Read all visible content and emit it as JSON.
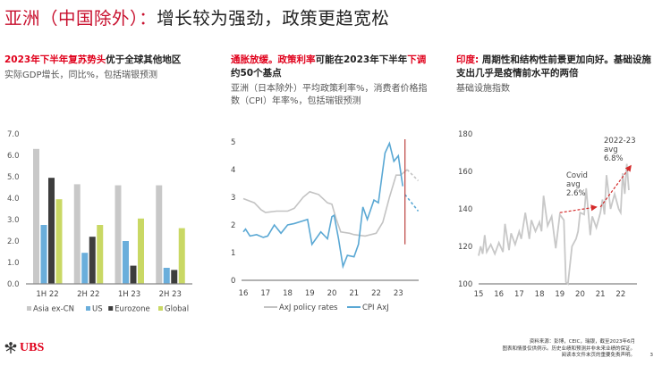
{
  "title": {
    "red": "亚洲（中国除外）：",
    "dark": "增长较为强劲，政策更趋宽松"
  },
  "panels": [
    {
      "headline_red": "2023年下半年复苏势头",
      "headline_dark": "优于全球其他地区",
      "subtitle": "实际GDP增长，同比%，包括瑞银预测"
    },
    {
      "headline_red1": "通胀放缓。政策利率",
      "headline_dark1": "可能在2023年下半年",
      "headline_red2": "下调",
      "headline_dark2": "约50个基点",
      "subtitle": "亚洲（日本除外）平均政策利率%，消费者价格指数（CPI）年率%，包括瑞银预测"
    },
    {
      "headline_red": "印度:",
      "headline_dark": " 周期性和结构性前景更加向好。基础设施支出几乎是疫情前水平的两倍",
      "subtitle": "基础设施指数"
    }
  ],
  "chart_data": [
    {
      "type": "bar",
      "title": "2023年下半年复苏势头优于全球其他地区",
      "ylabel": "实际GDP增长，同比%",
      "categories": [
        "1H 22",
        "2H 22",
        "1H 23",
        "2H 23"
      ],
      "yticks": [
        "0.0",
        "1.0",
        "2.0",
        "3.0",
        "4.0",
        "5.0",
        "6.0",
        "7.0"
      ],
      "ylim": [
        0,
        7
      ],
      "series": [
        {
          "name": "Asia ex-CN",
          "color": "#c8c8c8",
          "values": [
            6.3,
            4.65,
            4.6,
            4.6
          ]
        },
        {
          "name": "US",
          "color": "#6aaedb",
          "values": [
            2.75,
            1.45,
            2.0,
            0.75
          ]
        },
        {
          "name": "Eurozone",
          "color": "#3d3d3d",
          "values": [
            4.95,
            2.2,
            0.85,
            0.65
          ]
        },
        {
          "name": "Global",
          "color": "#c9d864",
          "values": [
            3.95,
            2.75,
            3.05,
            2.6
          ]
        }
      ],
      "legend_position": "bottom"
    },
    {
      "type": "line",
      "title": "亚洲（日本除外）平均政策利率%，CPI年率%",
      "x_ticks": [
        "16",
        "17",
        "18",
        "19",
        "20",
        "21",
        "22",
        "23"
      ],
      "yticks": [
        "0",
        "1",
        "2",
        "3",
        "4",
        "5"
      ],
      "ylim": [
        0,
        5
      ],
      "series": [
        {
          "name": "AxJ policy rates",
          "color": "#c3c3c3",
          "x": [
            16,
            16.5,
            16.8,
            17,
            17.5,
            18,
            18.3,
            18.7,
            19,
            19.4,
            19.8,
            20,
            20.2,
            20.4,
            20.8,
            21,
            21.5,
            22,
            22.3,
            22.6,
            22.9,
            23.1,
            23.4
          ],
          "y": [
            2.95,
            2.8,
            2.55,
            2.45,
            2.5,
            2.5,
            2.6,
            3.0,
            3.2,
            3.1,
            2.8,
            2.75,
            2.2,
            1.75,
            1.7,
            1.65,
            1.6,
            1.7,
            2.1,
            3.0,
            3.8,
            3.8,
            4.0
          ]
        },
        {
          "name": "AxJ policy rates (forecast)",
          "color": "#c3c3c3",
          "dashed": true,
          "x": [
            23.4,
            23.9
          ],
          "y": [
            4.0,
            3.6
          ]
        },
        {
          "name": "CPI AxJ",
          "color": "#5aa8d4",
          "x": [
            16,
            16.1,
            16.3,
            16.6,
            16.9,
            17.1,
            17.4,
            17.7,
            18,
            18.3,
            18.7,
            18.9,
            19.1,
            19.5,
            19.8,
            20,
            20.1,
            20.3,
            20.5,
            20.7,
            21,
            21.2,
            21.4,
            21.6,
            21.9,
            22.1,
            22.4,
            22.6,
            22.8,
            23.0,
            23.2
          ],
          "y": [
            1.75,
            1.85,
            1.6,
            1.65,
            1.55,
            1.6,
            2.0,
            1.7,
            2.0,
            2.05,
            2.15,
            2.2,
            1.3,
            1.75,
            1.5,
            2.3,
            2.35,
            1.5,
            0.5,
            0.9,
            0.85,
            1.3,
            2.65,
            2.2,
            2.9,
            2.8,
            4.6,
            4.95,
            4.3,
            4.5,
            3.4
          ]
        },
        {
          "name": "CPI AxJ (forecast)",
          "color": "#5aa8d4",
          "dashed": true,
          "x": [
            23.3,
            23.9
          ],
          "y": [
            3.1,
            2.5
          ]
        }
      ],
      "annotations": [
        {
          "type": "vline",
          "x": 23.3,
          "color": "#c0504d"
        }
      ],
      "legend_position": "bottom"
    },
    {
      "type": "line",
      "title": "基础设施指数",
      "x_ticks": [
        "15",
        "16",
        "17",
        "18",
        "19",
        "20",
        "21",
        "22"
      ],
      "yticks": [
        "100",
        "120",
        "140",
        "160",
        "180"
      ],
      "ylim": [
        100,
        180
      ],
      "series": [
        {
          "name": "Infrastructure index",
          "color": "#c8c8c8",
          "x": [
            15,
            15.1,
            15.2,
            15.3,
            15.4,
            15.6,
            15.8,
            16,
            16.2,
            16.3,
            16.5,
            16.6,
            16.8,
            17,
            17.1,
            17.3,
            17.5,
            17.6,
            17.8,
            18,
            18.1,
            18.2,
            18.4,
            18.6,
            18.8,
            19,
            19.2,
            19.3,
            19.4,
            19.6,
            19.8,
            19.9,
            20,
            20.2,
            20.3,
            20.5,
            20.6,
            20.8,
            21,
            21.1,
            21.2,
            21.3,
            21.5,
            21.7,
            21.9,
            22,
            22.1,
            22.2,
            22.3,
            22.4
          ],
          "y": [
            115,
            120,
            116,
            126,
            117,
            121,
            116,
            122,
            117,
            132,
            118,
            127,
            121,
            128,
            124,
            138,
            124,
            134,
            128,
            133,
            128,
            147,
            131,
            136,
            119,
            137,
            134,
            101,
            100,
            120,
            124,
            128,
            138,
            137,
            151,
            126,
            136,
            130,
            138,
            145,
            137,
            158,
            140,
            148,
            140,
            138,
            159,
            148,
            164,
            150
          ]
        }
      ],
      "annotations": [
        {
          "text": [
            "Covid",
            "avg",
            "2.6%"
          ],
          "arrow_from": [
            19.0,
            138
          ],
          "arrow_to": [
            20.8,
            141
          ]
        },
        {
          "text": [
            "2022-23",
            "avg",
            "6.8%"
          ],
          "arrow_from": [
            21.0,
            141
          ],
          "arrow_to": [
            22.5,
            163
          ]
        }
      ]
    }
  ],
  "legends": {
    "bar": [
      "Asia ex-CN",
      "US",
      "Eurozone",
      "Global"
    ],
    "line": [
      "AxJ policy rates",
      "CPI AxJ"
    ]
  },
  "footer": {
    "line1": "资料来源：彭博，CEIC，瑞银，截至2023年6月",
    "line2": "图表和情景仅供例示。历史业绩和预测并非未来业绩的保证。",
    "line3": "阅读本文件末页的重要免责声明。",
    "page": "3"
  },
  "logo": {
    "text": "UBS",
    "icon": "ubs-keys-icon"
  },
  "colors": {
    "accent_red": "#e0001b",
    "title_red": "#c8102e"
  }
}
